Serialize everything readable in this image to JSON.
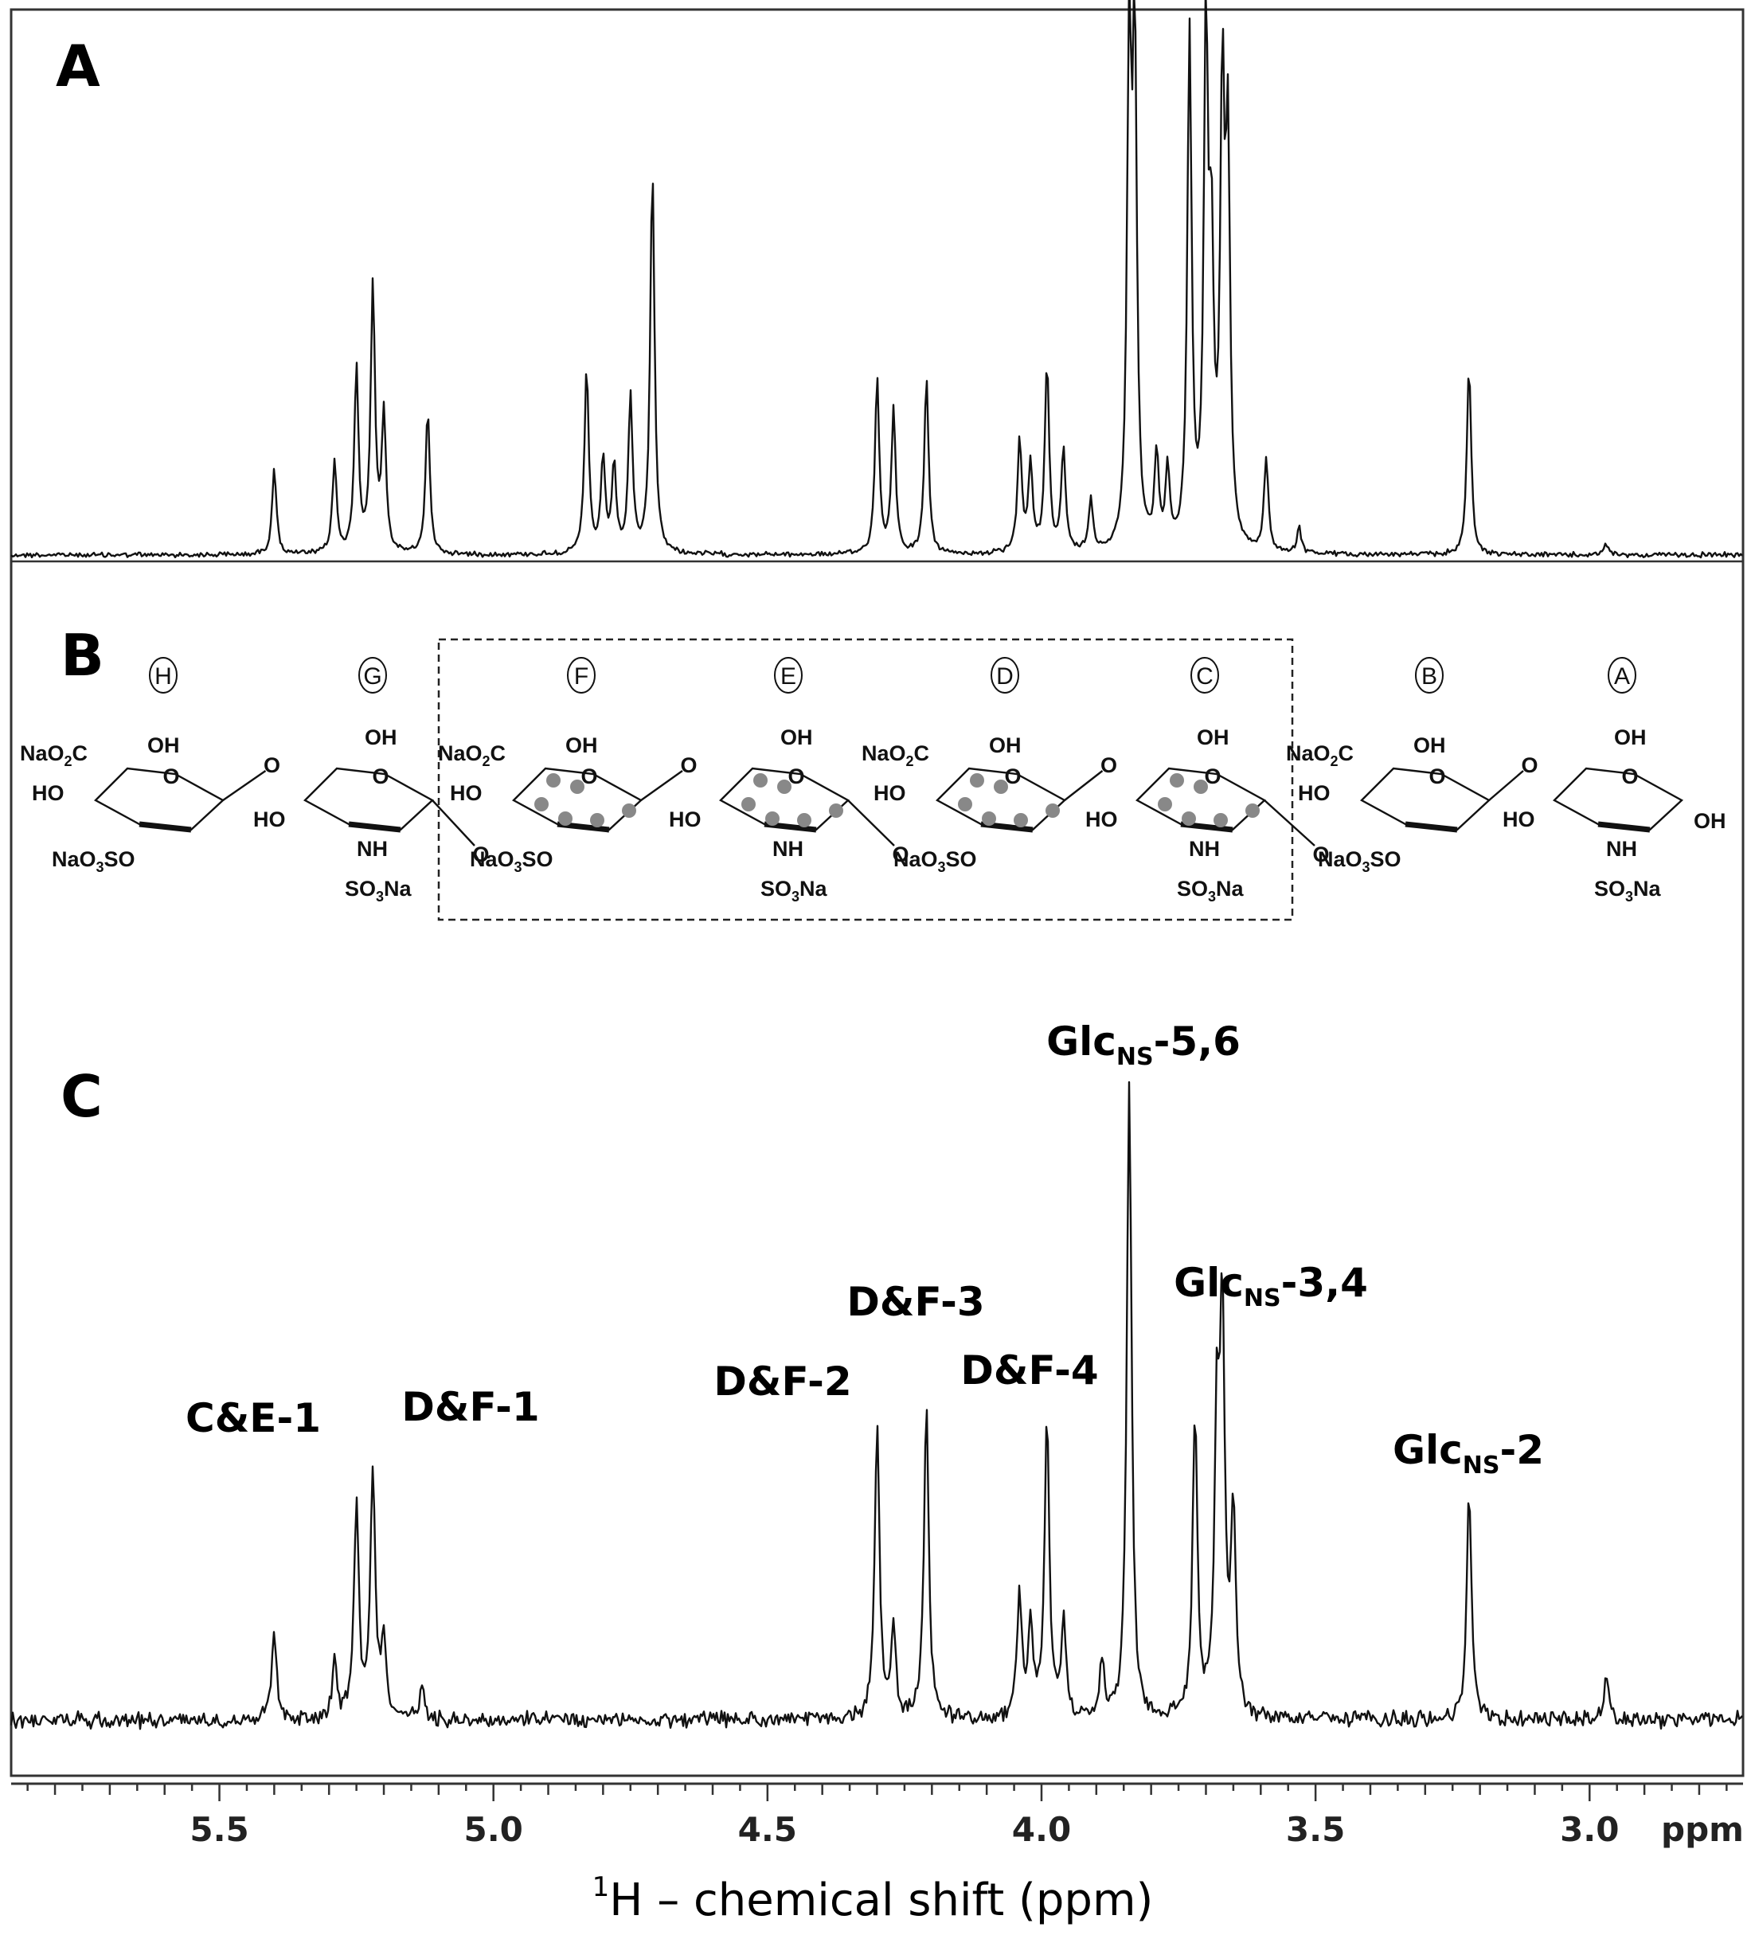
{
  "panels": {
    "a": "A",
    "b": "B",
    "c": "C"
  },
  "structure": {
    "units": [
      "H",
      "G",
      "F",
      "E",
      "D",
      "C",
      "B",
      "A"
    ],
    "labels": {
      "carboxylate_prefix": "NaO",
      "carboxylate_sub": "2",
      "carboxylate_suffix": "C",
      "hydroxyl": "OH",
      "hydroxyl_left": "HO",
      "sulfate_prefix": "NaO",
      "sulfate_sub": "3",
      "sulfate_suffix": "SO",
      "amine": "NH",
      "sulfamate_prefix": "SO",
      "sulfamate_sub": "3",
      "sulfamate_suffix": "Na",
      "ring_oxygen": "O",
      "anomeric_oh": "OH"
    }
  },
  "chart_data": [
    {
      "type": "line",
      "panel": "A",
      "xlim": [
        5.88,
        2.72
      ],
      "x_reversed": true,
      "series": [
        {
          "peaks": [
            {
              "x": 5.4,
              "y": 0.17
            },
            {
              "x": 5.29,
              "y": 0.18
            },
            {
              "x": 5.25,
              "y": 0.36
            },
            {
              "x": 5.22,
              "y": 0.52
            },
            {
              "x": 5.2,
              "y": 0.27
            },
            {
              "x": 5.12,
              "y": 0.28
            },
            {
              "x": 4.83,
              "y": 0.36
            },
            {
              "x": 4.8,
              "y": 0.18
            },
            {
              "x": 4.78,
              "y": 0.17
            },
            {
              "x": 4.75,
              "y": 0.3
            },
            {
              "x": 4.71,
              "y": 0.75
            },
            {
              "x": 4.3,
              "y": 0.34
            },
            {
              "x": 4.27,
              "y": 0.28
            },
            {
              "x": 4.21,
              "y": 0.34
            },
            {
              "x": 4.04,
              "y": 0.22
            },
            {
              "x": 4.02,
              "y": 0.17
            },
            {
              "x": 3.99,
              "y": 0.37
            },
            {
              "x": 3.96,
              "y": 0.2
            },
            {
              "x": 3.91,
              "y": 0.1
            },
            {
              "x": 3.84,
              "y": 0.96
            },
            {
              "x": 3.83,
              "y": 0.96
            },
            {
              "x": 3.79,
              "y": 0.18
            },
            {
              "x": 3.77,
              "y": 0.15
            },
            {
              "x": 3.73,
              "y": 1.0
            },
            {
              "x": 3.7,
              "y": 0.98
            },
            {
              "x": 3.69,
              "y": 0.52
            },
            {
              "x": 3.67,
              "y": 0.86
            },
            {
              "x": 3.66,
              "y": 0.75
            },
            {
              "x": 3.59,
              "y": 0.18
            },
            {
              "x": 3.53,
              "y": 0.05
            },
            {
              "x": 3.22,
              "y": 0.37
            },
            {
              "x": 2.97,
              "y": 0.02
            }
          ]
        }
      ]
    },
    {
      "type": "line",
      "panel": "C",
      "xlim": [
        5.88,
        2.72
      ],
      "x_reversed": true,
      "series": [
        {
          "peaks": [
            {
              "x": 5.4,
              "y": 0.14
            },
            {
              "x": 5.29,
              "y": 0.09
            },
            {
              "x": 5.25,
              "y": 0.33
            },
            {
              "x": 5.22,
              "y": 0.38
            },
            {
              "x": 5.2,
              "y": 0.12
            },
            {
              "x": 5.13,
              "y": 0.05
            },
            {
              "x": 4.3,
              "y": 0.45
            },
            {
              "x": 4.27,
              "y": 0.13
            },
            {
              "x": 4.21,
              "y": 0.48
            },
            {
              "x": 4.04,
              "y": 0.18
            },
            {
              "x": 4.02,
              "y": 0.15
            },
            {
              "x": 3.99,
              "y": 0.45
            },
            {
              "x": 3.96,
              "y": 0.14
            },
            {
              "x": 3.89,
              "y": 0.08
            },
            {
              "x": 3.84,
              "y": 0.97
            },
            {
              "x": 3.72,
              "y": 0.46
            },
            {
              "x": 3.68,
              "y": 0.42
            },
            {
              "x": 3.67,
              "y": 0.58
            },
            {
              "x": 3.65,
              "y": 0.3
            },
            {
              "x": 3.22,
              "y": 0.35
            },
            {
              "x": 2.97,
              "y": 0.07
            }
          ]
        }
      ],
      "annotations": [
        {
          "x": 5.4,
          "main": "C&E-1",
          "sub": "",
          "tail": ""
        },
        {
          "x": 5.12,
          "main": "D&F-1",
          "sub": "",
          "tail": ""
        },
        {
          "x": 4.3,
          "main": "D&F-2",
          "sub": "",
          "tail": ""
        },
        {
          "x": 4.21,
          "main": "D&F-3",
          "sub": "",
          "tail": ""
        },
        {
          "x": 3.99,
          "main": "D&F-4",
          "sub": "",
          "tail": ""
        },
        {
          "x": 3.84,
          "main": "Glc",
          "sub": "NS",
          "tail": "-5,6"
        },
        {
          "x": 3.66,
          "main": "Glc",
          "sub": "NS",
          "tail": "-3,4"
        },
        {
          "x": 3.22,
          "main": "Glc",
          "sub": "NS",
          "tail": "-2"
        }
      ]
    }
  ],
  "x_axis": {
    "ticks": [
      "5.5",
      "5.0",
      "4.5",
      "4.0",
      "3.5",
      "3.0"
    ],
    "tick_values": [
      5.5,
      5.0,
      4.5,
      4.0,
      3.5,
      3.0
    ],
    "unit": "ppm",
    "label_sup": "1",
    "label_main": "H – chemical shift (ppm)"
  }
}
